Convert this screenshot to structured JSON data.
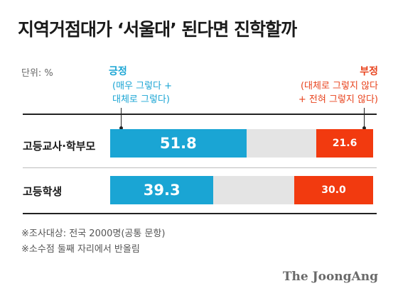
{
  "title": "지역거점대가 ‘서울대’ 된다면 진학할까",
  "unit_label": "단위: %",
  "legend": {
    "positive": {
      "label": "긍정",
      "desc_line1": "(매우 그렇다 +",
      "desc_line2": "대체로 그렇다)",
      "color": "#1aa5d4"
    },
    "negative": {
      "label": "부정",
      "desc_line1": "(대체로 그렇지 않다",
      "desc_line2": "+ 전혀 그렇지 않다)",
      "color": "#f23a0f"
    },
    "neutral_color": "#e4e4e4"
  },
  "notes": [
    "※조사대상: 전국 2000명(공통 문항)",
    "※소수점 둘째 자리에서 반올림"
  ],
  "brand": "The JoongAng",
  "chart_data": {
    "type": "bar",
    "orientation": "horizontal-stacked",
    "title": "지역거점대가 ‘서울대’ 된다면 진학할까",
    "unit": "%",
    "categories": [
      "고등교사·학부모",
      "고등학생"
    ],
    "series": [
      {
        "name": "긍정",
        "values": [
          51.8,
          39.3
        ]
      },
      {
        "name": "부정",
        "values": [
          21.6,
          30.0
        ]
      }
    ],
    "value_labels": {
      "positive": [
        "51.8",
        "39.3"
      ],
      "negative": [
        "21.6",
        "30.0"
      ]
    },
    "xlim": [
      0,
      100
    ]
  }
}
